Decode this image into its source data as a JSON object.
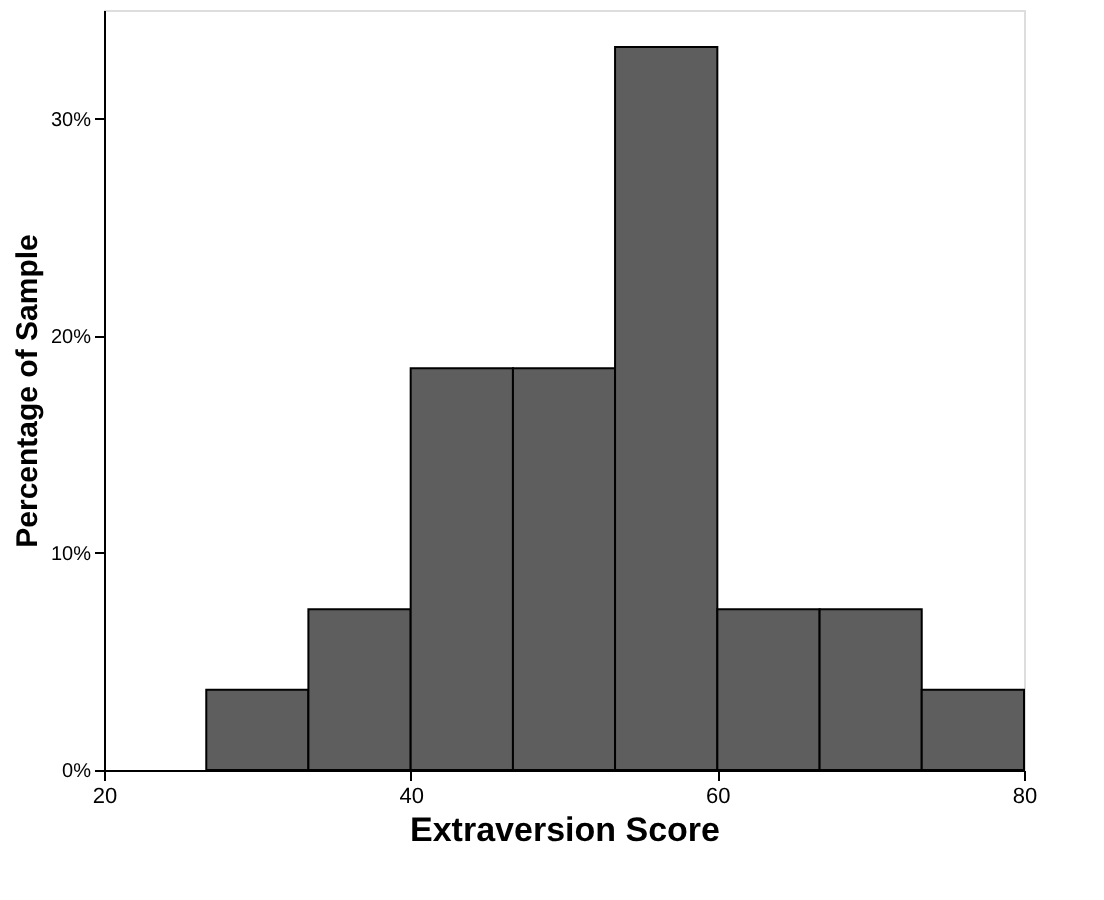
{
  "chart_data": {
    "type": "histogram",
    "xlabel": "Extraversion Score",
    "ylabel": "Percentage of Sample",
    "bins": [
      26.67,
      33.33,
      40,
      46.67,
      53.33,
      60,
      66.67,
      73.33,
      80
    ],
    "values": [
      3.7,
      7.4,
      18.5,
      18.5,
      33.3,
      7.4,
      7.4,
      3.7
    ],
    "color": "#5e5e5e",
    "xlim": [
      20,
      80
    ],
    "xticks": [
      20,
      40,
      60,
      80
    ],
    "ylim": [
      0,
      35
    ],
    "yticks": [
      {
        "value": 0,
        "label": "0%"
      },
      {
        "value": 10,
        "label": "10%"
      },
      {
        "value": 20,
        "label": "20%"
      },
      {
        "value": 30,
        "label": "30%"
      }
    ],
    "grid": false
  }
}
